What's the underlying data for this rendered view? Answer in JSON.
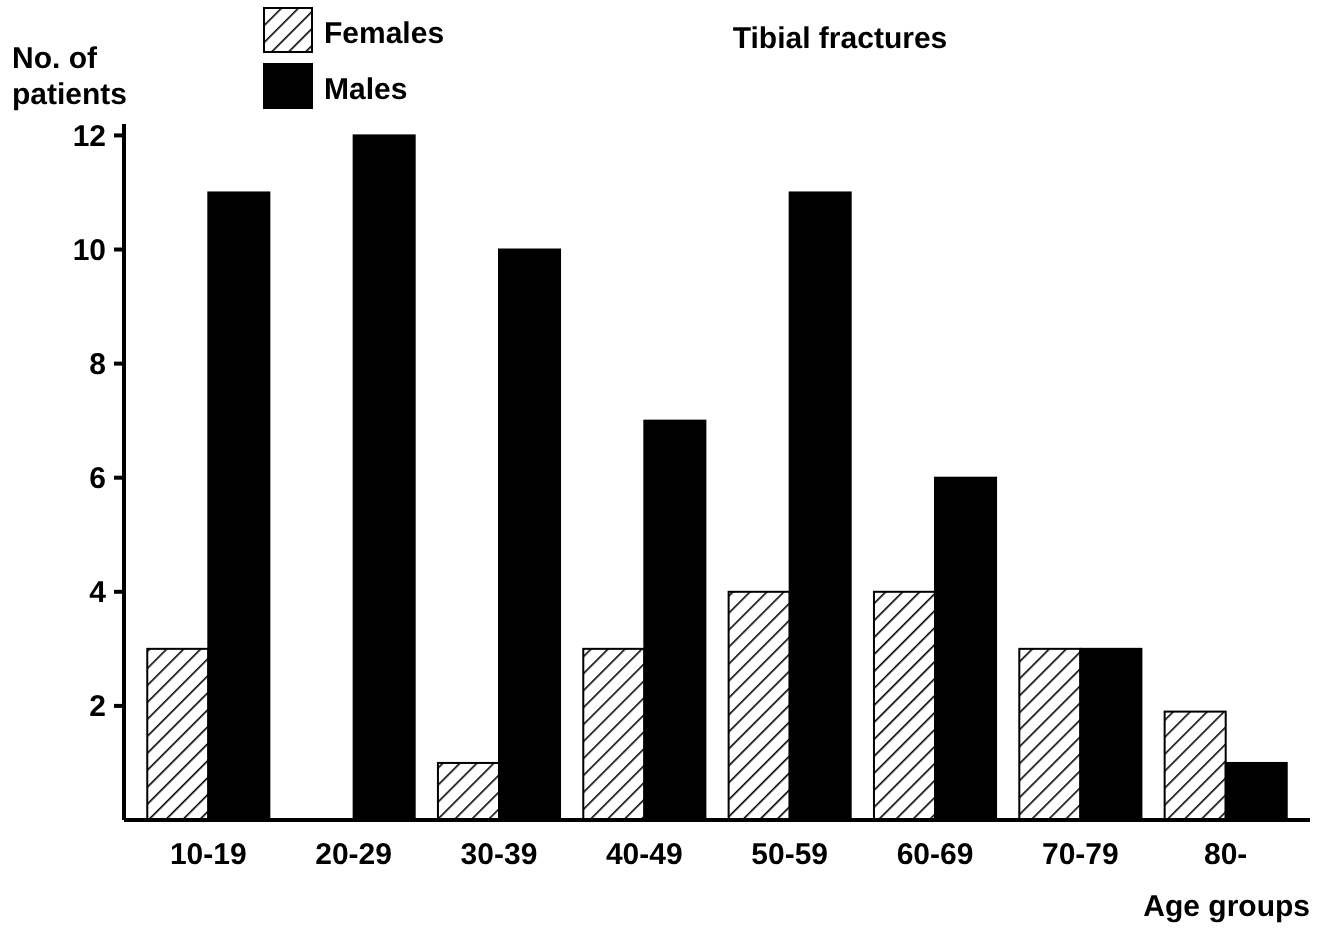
{
  "chart_data": {
    "type": "bar",
    "title": "Tibial fractures",
    "ylabel": "No. of patients",
    "xlabel": "Age groups",
    "categories": [
      "10-19",
      "20-29",
      "30-39",
      "40-49",
      "50-59",
      "60-69",
      "70-79",
      "80-"
    ],
    "series": [
      {
        "name": "Females",
        "color": "#000000",
        "values": [
          3,
          0,
          1,
          3,
          4,
          4,
          3,
          1.9
        ]
      },
      {
        "name": "Males",
        "color": "#000000",
        "values": [
          11,
          12,
          10,
          7,
          11,
          6,
          3,
          1
        ]
      }
    ],
    "ylim": [
      0,
      12.2
    ],
    "yticks": [
      2,
      4,
      6,
      8,
      10,
      12
    ],
    "legend": "top left",
    "grid": false
  }
}
